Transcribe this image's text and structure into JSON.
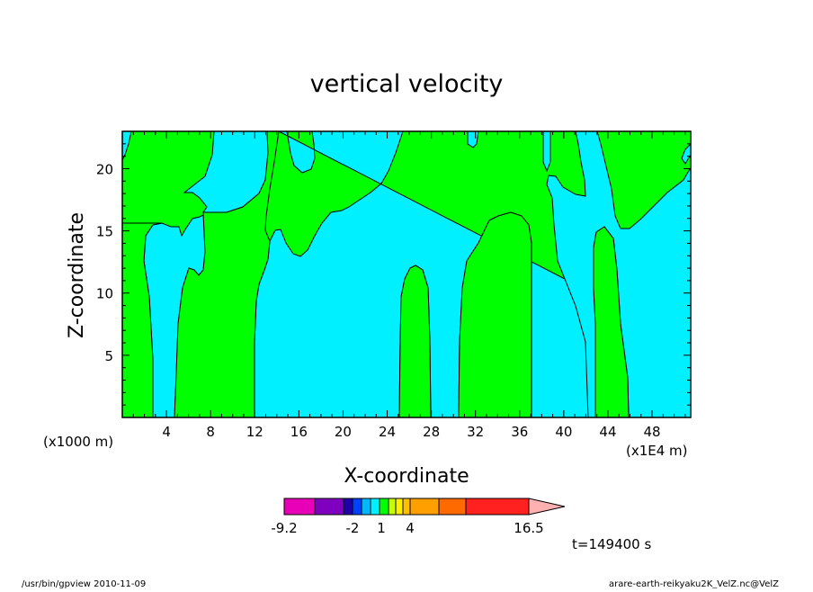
{
  "chart_data": {
    "type": "heatmap",
    "title": "vertical velocity",
    "xlabel": "X-coordinate",
    "ylabel": "Z-coordinate",
    "x_multiplier_label": "(x1000 m)",
    "x_unit_label": "(x1E4 m)",
    "xlim": [
      0,
      51.5
    ],
    "ylim": [
      0,
      23
    ],
    "x_ticks": [
      4,
      8,
      12,
      16,
      20,
      24,
      28,
      32,
      36,
      40,
      44,
      48
    ],
    "y_ticks": [
      5,
      10,
      15,
      20
    ],
    "colorbar": {
      "min_label": "-9.2",
      "max_label": "16.5",
      "tick_labels": [
        "-2",
        "1",
        "4"
      ],
      "colors": [
        "#e800b8",
        "#8000c0",
        "#2000a8",
        "#0040ff",
        "#00b8ff",
        "#00f0ff",
        "#00ff00",
        "#c8ff00",
        "#fff000",
        "#ffc000",
        "#ffa000",
        "#ff6a00",
        "#ff2020",
        "#ff7a7a",
        "#ffb0b0"
      ]
    },
    "fill_colors": {
      "positive": "#00ff00",
      "negative": "#00f0ff"
    },
    "time_label": "t=149400 s"
  },
  "footer": {
    "left": "/usr/bin/gpview   2010-11-09",
    "right": "arare-earth-reikyaku2K_VelZ.nc@VelZ"
  }
}
